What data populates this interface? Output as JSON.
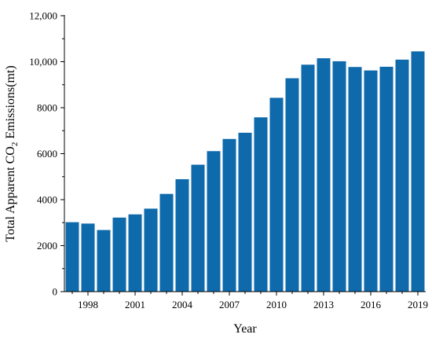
{
  "chart_data": {
    "type": "bar",
    "xlabel": "Year",
    "ylabel_parts": [
      "Total Apparent CO",
      "2",
      " Emissions(mt)"
    ],
    "ylim": [
      0,
      12000
    ],
    "yticks": [
      0,
      2000,
      4000,
      6000,
      8000,
      10000,
      12000
    ],
    "ytick_labels": [
      "0",
      "2000",
      "4000",
      "6000",
      "8000",
      "10,000",
      "12,000"
    ],
    "xtick_labels": [
      "1998",
      "2001",
      "2004",
      "2007",
      "2010",
      "2013",
      "2016",
      "2019"
    ],
    "categories": [
      1997,
      1998,
      1999,
      2000,
      2001,
      2002,
      2003,
      2004,
      2005,
      2006,
      2007,
      2008,
      2009,
      2010,
      2011,
      2012,
      2013,
      2014,
      2015,
      2016,
      2017,
      2018,
      2019
    ],
    "values": [
      3020,
      2960,
      2680,
      3220,
      3360,
      3610,
      4250,
      4890,
      5520,
      6110,
      6640,
      6910,
      7580,
      8430,
      9280,
      9870,
      10150,
      10020,
      9770,
      9620,
      9780,
      10090,
      10450
    ],
    "grid": false,
    "bar_color": "#0e6aab"
  }
}
